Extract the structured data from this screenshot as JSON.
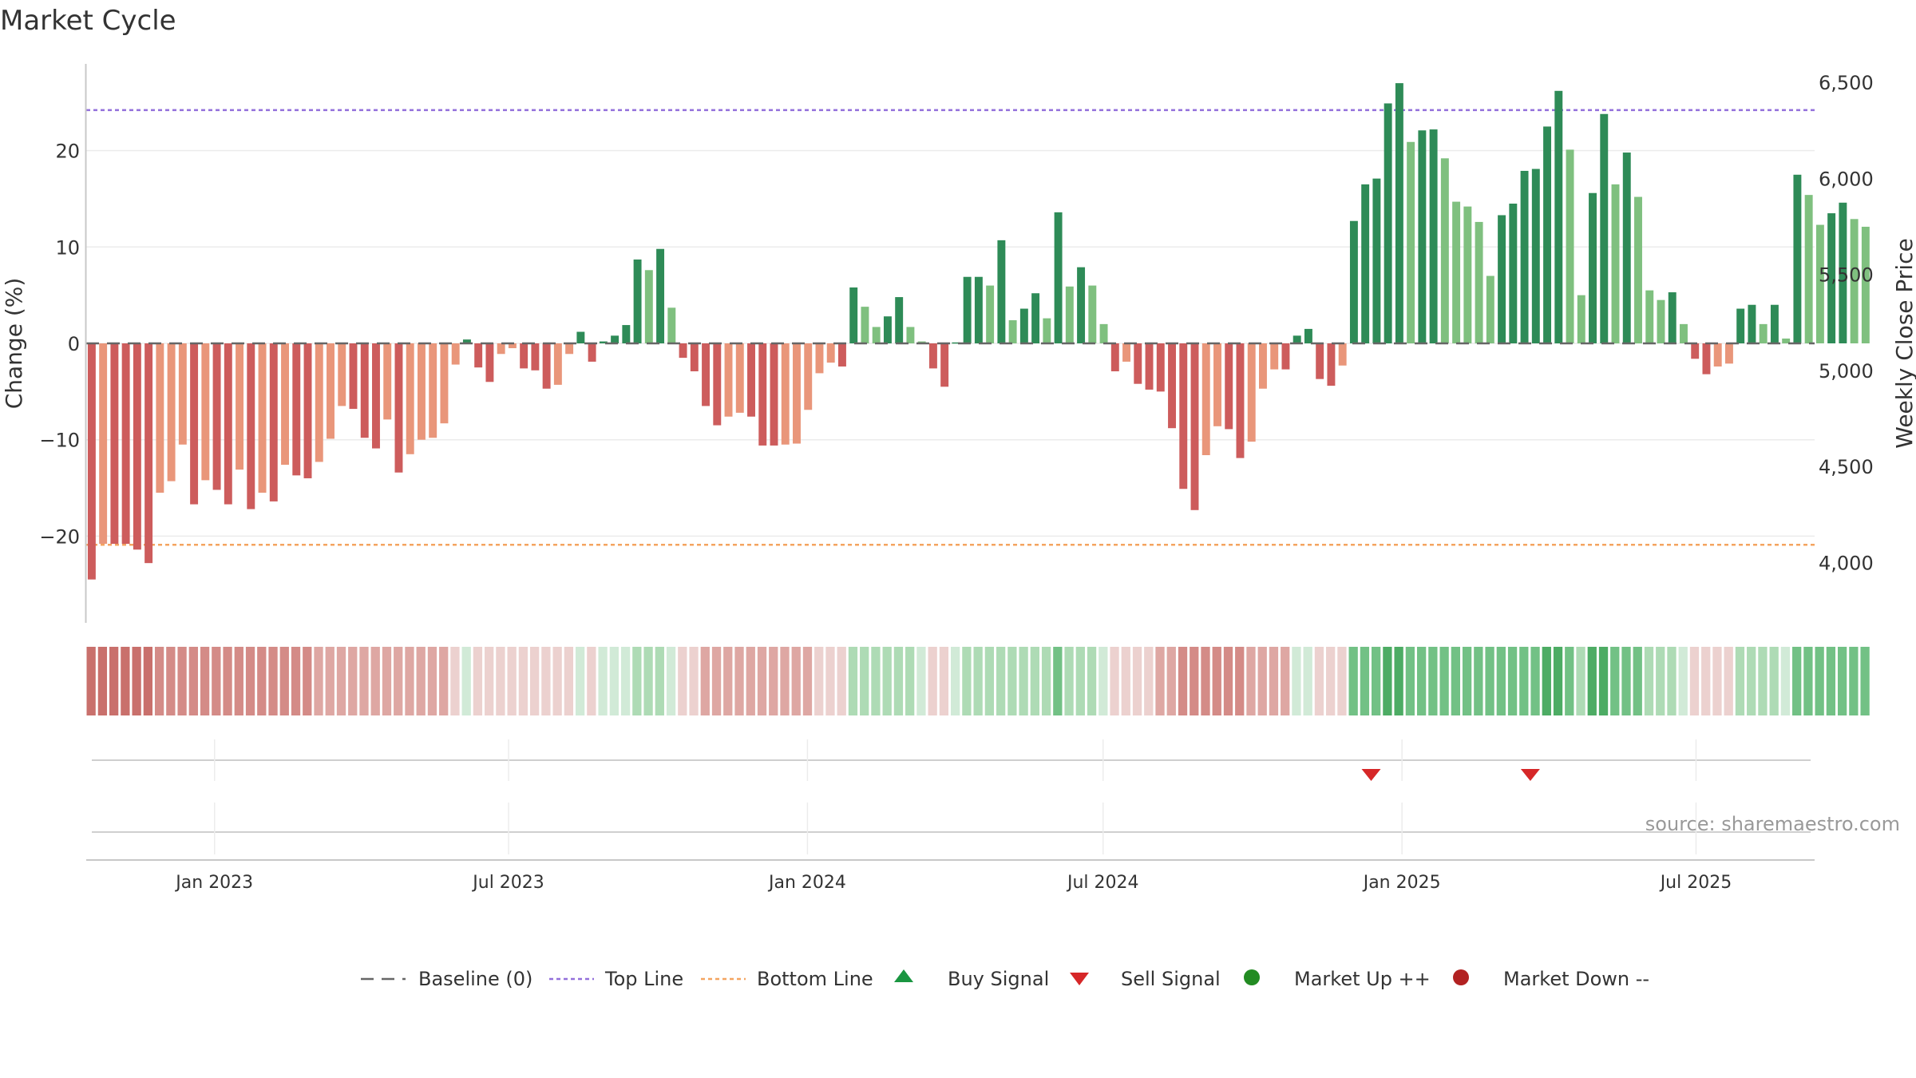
{
  "chart_data": {
    "type": "bar",
    "title": "Market Cycle",
    "ylabel": "Change (%)",
    "y2label": "Weekly Close Price",
    "source_note": "source: sharemaestro.com",
    "ylim": [
      -29,
      29
    ],
    "y_ticks": [
      20,
      10,
      0,
      -10,
      -20
    ],
    "y_tick_labels": [
      "20",
      "10",
      "0",
      "−10",
      "−20"
    ],
    "y2lim": [
      3690,
      6600
    ],
    "y2_ticks": [
      6500,
      6000,
      5500,
      5000,
      4500,
      4000
    ],
    "y2_tick_labels": [
      "6,500",
      "6,000",
      "5,500",
      "5,000",
      "4,500",
      "4,000"
    ],
    "x_range": [
      "2022-10-14",
      "2025-09-12"
    ],
    "x_ticks": [
      "2023-01-01",
      "2023-07-01",
      "2024-01-01",
      "2024-07-01",
      "2025-01-01",
      "2025-07-01"
    ],
    "x_tick_labels": [
      "Jan 2023",
      "Jul 2023",
      "Jan 2024",
      "Jul 2024",
      "Jan 2025",
      "Jul 2025"
    ],
    "first_week": "2022-10-14",
    "bar_change_pct": [
      -24.5,
      -20.8,
      -20.8,
      -20.8,
      -21.4,
      -22.8,
      -15.5,
      -14.3,
      -10.5,
      -16.7,
      -14.2,
      -15.2,
      -16.7,
      -13.1,
      -17.2,
      -15.5,
      -16.4,
      -12.6,
      -13.7,
      -14.0,
      -12.3,
      -9.9,
      -6.5,
      -6.8,
      -9.8,
      -10.9,
      -7.9,
      -13.4,
      -11.5,
      -10.0,
      -9.8,
      -8.3,
      -2.2,
      0.4,
      -2.5,
      -4.0,
      -1.1,
      -0.5,
      -2.6,
      -2.8,
      -4.7,
      -4.3,
      -1.1,
      1.2,
      -1.9,
      0.2,
      0.8,
      1.9,
      8.7,
      7.6,
      9.8,
      3.7,
      -1.5,
      -2.9,
      -6.5,
      -8.5,
      -7.6,
      -7.2,
      -7.6,
      -10.6,
      -10.6,
      -10.5,
      -10.4,
      -6.9,
      -3.1,
      -2.0,
      -2.4,
      5.8,
      3.8,
      1.7,
      2.8,
      4.8,
      1.7,
      0.2,
      -2.6,
      -4.5,
      0.1,
      6.9,
      6.9,
      6.0,
      10.7,
      2.4,
      3.6,
      5.2,
      2.6,
      13.6,
      5.9,
      7.9,
      6.0,
      2.0,
      -2.9,
      -1.9,
      -4.2,
      -4.8,
      -5.0,
      -8.8,
      -15.1,
      -17.3,
      -11.6,
      -8.6,
      -8.9,
      -11.9,
      -10.2,
      -4.7,
      -2.7,
      -2.7,
      0.8,
      1.5,
      -3.7,
      -4.4,
      -2.3,
      12.7,
      16.5,
      17.1,
      24.9,
      27.0,
      20.9,
      22.1,
      22.2,
      19.2,
      14.7,
      14.2,
      12.6,
      7.0,
      13.3,
      14.5,
      17.9,
      18.1,
      22.5,
      26.2,
      20.1,
      5.0,
      15.6,
      23.8,
      16.5,
      19.8,
      15.2,
      5.5,
      4.5,
      5.3,
      2.0,
      -1.6,
      -3.2,
      -2.4,
      -2.1,
      3.6,
      4.0,
      2.0,
      4.0,
      0.5,
      17.5,
      15.4,
      12.3,
      13.5,
      14.6,
      12.9,
      12.1
    ],
    "strip_levels": [
      -4,
      -4,
      -4,
      -4,
      -4,
      -4,
      -3,
      -3,
      -3,
      -3,
      -3,
      -3,
      -3,
      -3,
      -3,
      -3,
      -3,
      -3,
      -3,
      -3,
      -2,
      -2,
      -2,
      -2,
      -2,
      -2,
      -2,
      -2,
      -2,
      -2,
      -2,
      -2,
      -1,
      1,
      -1,
      -1,
      -1,
      -1,
      -1,
      -1,
      -1,
      -1,
      -1,
      1,
      -1,
      1,
      1,
      1,
      2,
      2,
      2,
      1,
      -1,
      -1,
      -2,
      -2,
      -2,
      -2,
      -2,
      -2,
      -2,
      -2,
      -2,
      -2,
      -1,
      -1,
      -1,
      2,
      2,
      2,
      2,
      2,
      2,
      1,
      -1,
      -1,
      1,
      2,
      2,
      2,
      2,
      2,
      2,
      2,
      2,
      3,
      2,
      2,
      2,
      1,
      -1,
      -1,
      -1,
      -1,
      -2,
      -2,
      -3,
      -3,
      -3,
      -3,
      -3,
      -3,
      -2,
      -2,
      -2,
      -2,
      1,
      1,
      -1,
      -1,
      -1,
      3,
      3,
      3,
      4,
      4,
      3,
      3,
      3,
      3,
      3,
      3,
      3,
      3,
      3,
      3,
      3,
      3,
      4,
      4,
      3,
      2,
      4,
      4,
      3,
      3,
      3,
      2,
      2,
      2,
      1,
      -1,
      -1,
      -1,
      -1,
      2,
      2,
      2,
      2,
      1,
      3,
      3,
      3,
      3,
      3,
      3,
      3
    ],
    "top_line": 24.2,
    "bottom_line": -20.9,
    "sell_signals": [
      "2024-12-13",
      "2025-03-21"
    ],
    "buy_signals": [],
    "legend": [
      "Baseline (0)",
      "Top Line",
      "Bottom Line",
      "Buy Signal",
      "Sell Signal",
      "Market Up ++",
      "Market Down --"
    ],
    "legend_position": "bottom-center",
    "grid": true,
    "colors": {
      "strong_up": "#2e8b57",
      "mild_up": "#7fc07f",
      "strong_down": "#cd5c5c",
      "mild_down": "#e9967a",
      "top_line": "#9370db",
      "bottom_line": "#f4a460",
      "baseline": "#666666",
      "buy": "#1a9641",
      "sell": "#d62728",
      "market_up": "#228b22",
      "market_down": "#b22222"
    }
  }
}
